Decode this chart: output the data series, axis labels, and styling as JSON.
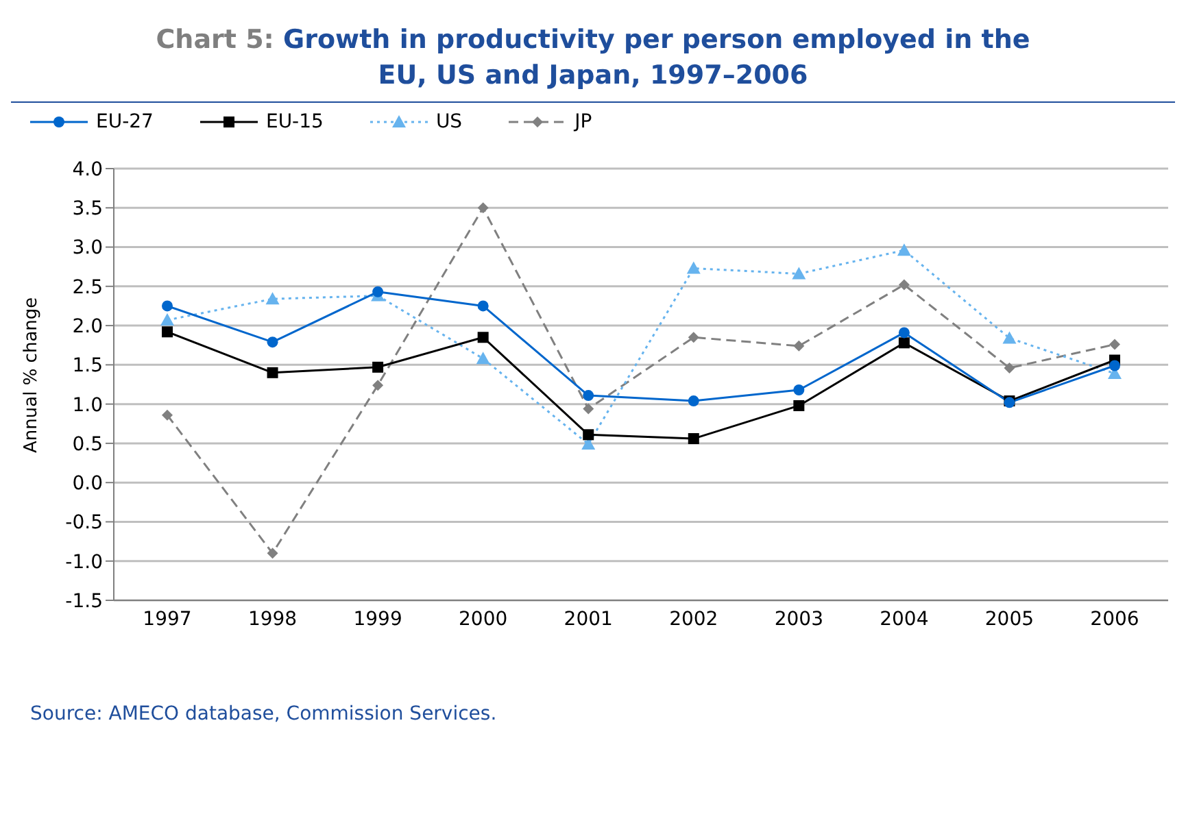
{
  "chart_data": {
    "type": "line",
    "title": "Chart 5: Growth in productivity per person employed in the EU, US and Japan, 1997–2006",
    "ylabel": "Annual % change",
    "categories": [
      "1997",
      "1998",
      "1999",
      "2000",
      "2001",
      "2002",
      "2003",
      "2004",
      "2005",
      "2006"
    ],
    "series": [
      {
        "name": "EU-27",
        "color": "#0066cc",
        "marker": "circle",
        "line_style": "solid",
        "values": [
          2.25,
          1.79,
          2.43,
          2.25,
          1.11,
          1.04,
          1.18,
          1.91,
          1.02,
          1.49
        ]
      },
      {
        "name": "EU-15",
        "color": "#000000",
        "marker": "square",
        "line_style": "solid",
        "values": [
          1.92,
          1.4,
          1.47,
          1.85,
          0.61,
          0.56,
          0.98,
          1.78,
          1.04,
          1.56
        ]
      },
      {
        "name": "US",
        "color": "#66b3ee",
        "marker": "triangle",
        "line_style": "dotted",
        "values": [
          2.07,
          2.34,
          2.38,
          1.58,
          0.49,
          2.73,
          2.66,
          2.96,
          1.84,
          1.39
        ]
      },
      {
        "name": "JP",
        "color": "#808080",
        "marker": "diamond",
        "line_style": "dashed",
        "values": [
          0.86,
          -0.9,
          1.24,
          3.5,
          0.94,
          1.85,
          1.74,
          2.52,
          1.46,
          1.76
        ]
      }
    ],
    "ylim": [
      -1.5,
      4.0
    ],
    "yticks": [
      {
        "value": -1.5,
        "label": "-1.5"
      },
      {
        "value": -1.0,
        "label": "-1.0"
      },
      {
        "value": -0.5,
        "label": "-0.5"
      },
      {
        "value": 0,
        "label": "0.0"
      },
      {
        "value": 0.5,
        "label": "0.5"
      },
      {
        "value": 1.0,
        "label": "1.0"
      },
      {
        "value": 1.5,
        "label": "1.5"
      },
      {
        "value": 2.0,
        "label": "2.0"
      },
      {
        "value": 2.5,
        "label": "2.5"
      },
      {
        "value": 3.0,
        "label": "3.0"
      },
      {
        "value": 3.5,
        "label": "3.5"
      },
      {
        "value": 4.0,
        "label": "4.0"
      }
    ],
    "grid": "y",
    "legend": "top left",
    "annotations": [
      "Source: AMECO database, Commission Services."
    ]
  }
}
